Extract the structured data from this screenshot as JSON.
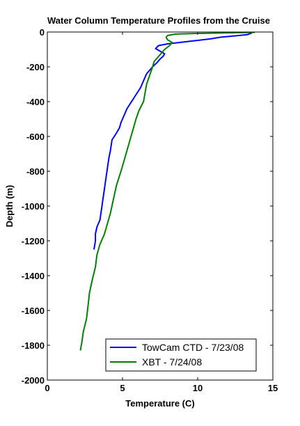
{
  "chart_data": {
    "type": "line",
    "title": "Water Column Temperature Profiles from the Cruise",
    "xlabel": "Temperature (C)",
    "ylabel": "Depth (m)",
    "xlim": [
      0,
      15
    ],
    "ylim": [
      -2000,
      0
    ],
    "xticks": [
      0,
      5,
      10,
      15
    ],
    "yticks": [
      0,
      -200,
      -400,
      -600,
      -800,
      -1000,
      -1200,
      -1400,
      -1600,
      -1800,
      -2000
    ],
    "grid": false,
    "legend_position": "bottom-right",
    "series": [
      {
        "name": "TowCam CTD - 7/23/08",
        "color": "#0000ff",
        "points": [
          [
            13.6,
            -5
          ],
          [
            13.3,
            -15
          ],
          [
            12.5,
            -22
          ],
          [
            11.5,
            -30
          ],
          [
            10.8,
            -40
          ],
          [
            10.0,
            -48
          ],
          [
            9.0,
            -58
          ],
          [
            8.0,
            -68
          ],
          [
            7.4,
            -78
          ],
          [
            7.2,
            -95
          ],
          [
            7.5,
            -110
          ],
          [
            7.8,
            -125
          ],
          [
            7.7,
            -140
          ],
          [
            7.5,
            -155
          ],
          [
            7.3,
            -175
          ],
          [
            7.0,
            -200
          ],
          [
            6.6,
            -240
          ],
          [
            6.4,
            -280
          ],
          [
            6.2,
            -320
          ],
          [
            5.9,
            -360
          ],
          [
            5.6,
            -400
          ],
          [
            5.3,
            -440
          ],
          [
            5.1,
            -480
          ],
          [
            4.9,
            -520
          ],
          [
            4.8,
            -550
          ],
          [
            4.6,
            -580
          ],
          [
            4.3,
            -620
          ],
          [
            4.2,
            -680
          ],
          [
            4.1,
            -720
          ],
          [
            4.0,
            -780
          ],
          [
            3.9,
            -840
          ],
          [
            3.8,
            -900
          ],
          [
            3.7,
            -960
          ],
          [
            3.6,
            -1020
          ],
          [
            3.5,
            -1080
          ],
          [
            3.3,
            -1120
          ],
          [
            3.2,
            -1160
          ],
          [
            3.2,
            -1200
          ],
          [
            3.1,
            -1250
          ]
        ]
      },
      {
        "name": "XBT - 7/24/08",
        "color": "#008000",
        "points": [
          [
            13.8,
            -2
          ],
          [
            12.0,
            -5
          ],
          [
            10.0,
            -8
          ],
          [
            8.5,
            -12
          ],
          [
            8.0,
            -20
          ],
          [
            7.9,
            -30
          ],
          [
            8.0,
            -45
          ],
          [
            8.3,
            -60
          ],
          [
            8.1,
            -80
          ],
          [
            7.8,
            -100
          ],
          [
            7.5,
            -130
          ],
          [
            7.1,
            -170
          ],
          [
            7.0,
            -200
          ],
          [
            6.8,
            -250
          ],
          [
            6.6,
            -300
          ],
          [
            6.5,
            -350
          ],
          [
            6.4,
            -400
          ],
          [
            6.1,
            -450
          ],
          [
            5.9,
            -500
          ],
          [
            5.7,
            -560
          ],
          [
            5.5,
            -620
          ],
          [
            5.3,
            -680
          ],
          [
            5.1,
            -740
          ],
          [
            4.9,
            -800
          ],
          [
            4.6,
            -880
          ],
          [
            4.4,
            -960
          ],
          [
            4.2,
            -1040
          ],
          [
            4.0,
            -1100
          ],
          [
            3.8,
            -1160
          ],
          [
            3.5,
            -1220
          ],
          [
            3.3,
            -1280
          ],
          [
            3.2,
            -1350
          ],
          [
            3.0,
            -1420
          ],
          [
            2.8,
            -1500
          ],
          [
            2.7,
            -1580
          ],
          [
            2.6,
            -1650
          ],
          [
            2.4,
            -1720
          ],
          [
            2.3,
            -1780
          ],
          [
            2.2,
            -1830
          ]
        ]
      }
    ]
  }
}
